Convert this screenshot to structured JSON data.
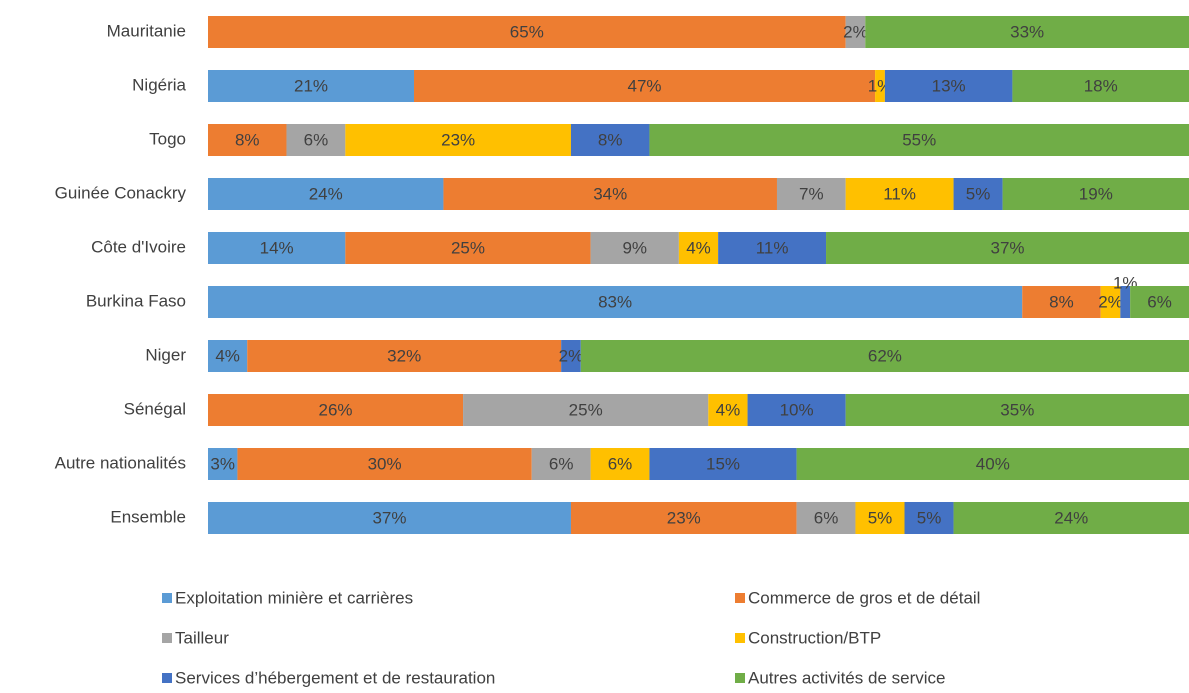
{
  "chart_data": {
    "type": "stacked-bar",
    "orientation": "horizontal",
    "categories": [
      "Mauritanie",
      "Nigéria",
      "Togo",
      "Guinée Conackry",
      "Côte d'Ivoire",
      "Burkina Faso",
      "Niger",
      "Sénégal",
      "Autre nationalités",
      "Ensemble"
    ],
    "xlim": [
      0,
      100
    ],
    "series": [
      {
        "name": "Exploitation minière et carrières",
        "color": "#5b9bd5",
        "values": [
          null,
          21,
          null,
          24,
          14,
          83,
          4,
          null,
          3,
          37
        ],
        "value_labels": [
          null,
          "21%",
          null,
          "24%",
          "14%",
          "83%",
          "4%",
          null,
          "3%",
          "37%"
        ]
      },
      {
        "name": "Commerce de gros et de détail",
        "color": "#ed7d31",
        "values": [
          65,
          47,
          8,
          34,
          25,
          8,
          32,
          26,
          30,
          23
        ],
        "value_labels": [
          "65%",
          "47%",
          "8%",
          "34%",
          "25%",
          "8%",
          "32%",
          "26%",
          "30%",
          "23%"
        ]
      },
      {
        "name": "Tailleur",
        "color": "#a5a5a5",
        "values": [
          2,
          null,
          6,
          7,
          9,
          null,
          null,
          25,
          6,
          6
        ],
        "value_labels": [
          "2%",
          null,
          "6%",
          "7%",
          "9%",
          null,
          null,
          "25%",
          "6%",
          "6%"
        ]
      },
      {
        "name": "Construction/BTP",
        "color": "#ffc000",
        "values": [
          null,
          1,
          23,
          11,
          4,
          2,
          null,
          4,
          6,
          5
        ],
        "value_labels": [
          null,
          "1%",
          "23%",
          "11%",
          "4%",
          "2%",
          null,
          "4%",
          "6%",
          "5%"
        ]
      },
      {
        "name": "Services d’hébergement et de restauration",
        "color": "#4472c4",
        "values": [
          null,
          13,
          8,
          5,
          11,
          1,
          2,
          10,
          15,
          5
        ],
        "value_labels": [
          null,
          "13%",
          "8%",
          "5%",
          "11%",
          "1%",
          "2%",
          "10%",
          "15%",
          "5%"
        ]
      },
      {
        "name": "Autres activités de service",
        "color": "#70ad47",
        "values": [
          33,
          18,
          55,
          19,
          37,
          6,
          62,
          35,
          40,
          24
        ],
        "value_labels": [
          "33%",
          "18%",
          "55%",
          "19%",
          "37%",
          "6%",
          "62%",
          "35%",
          "40%",
          "24%"
        ]
      }
    ]
  }
}
